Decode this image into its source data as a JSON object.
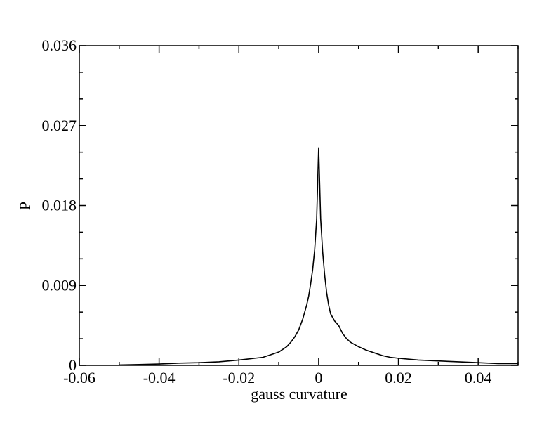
{
  "chart_data": {
    "type": "line",
    "title": "",
    "xlabel": "gauss curvature",
    "ylabel": "P",
    "xlim": [
      -0.06,
      0.05
    ],
    "ylim": [
      0,
      0.036
    ],
    "x_ticks": [
      -0.06,
      -0.04,
      -0.02,
      0,
      0.02,
      0.04
    ],
    "x_tick_labels": [
      "-0.06",
      "-0.04",
      "-0.02",
      "0",
      "0.02",
      "0.04"
    ],
    "y_ticks": [
      0,
      0.009,
      0.018,
      0.027,
      0.036
    ],
    "y_tick_labels": [
      "0",
      "0.009",
      "0.018",
      "0.027",
      "0.036"
    ],
    "grid": false,
    "legend": "none",
    "series": [
      {
        "color": "#000000",
        "x": [
          -0.05,
          -0.045,
          -0.04,
          -0.035,
          -0.03,
          -0.025,
          -0.02,
          -0.018,
          -0.016,
          -0.014,
          -0.012,
          -0.01,
          -0.008,
          -0.007,
          -0.006,
          -0.005,
          -0.004,
          -0.003,
          -0.0025,
          -0.002,
          -0.0015,
          -0.001,
          -0.0005,
          0,
          0.0005,
          0.001,
          0.0015,
          0.002,
          0.0025,
          0.003,
          0.004,
          0.005,
          0.006,
          0.007,
          0.008,
          0.01,
          0.012,
          0.014,
          0.016,
          0.018,
          0.02,
          0.025,
          0.03,
          0.035,
          0.04,
          0.045,
          0.05
        ],
        "values": [
          5e-05,
          0.0001,
          0.00015,
          0.00025,
          0.0003,
          0.0004,
          0.0006,
          0.0007,
          0.0008,
          0.0009,
          0.0012,
          0.0015,
          0.0021,
          0.0026,
          0.0032,
          0.004,
          0.0052,
          0.0068,
          0.0078,
          0.0092,
          0.0108,
          0.013,
          0.0165,
          0.0245,
          0.0165,
          0.0128,
          0.0102,
          0.0082,
          0.0068,
          0.0058,
          0.005,
          0.0045,
          0.0036,
          0.003,
          0.0026,
          0.0021,
          0.0017,
          0.0014,
          0.0011,
          0.0009,
          0.0008,
          0.0006,
          0.0005,
          0.0004,
          0.0003,
          0.0002,
          0.0002
        ]
      }
    ]
  }
}
